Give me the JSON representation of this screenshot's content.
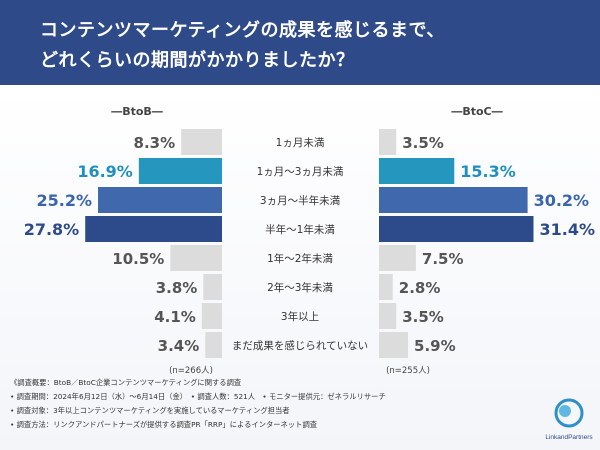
{
  "header": {
    "title_line1": "コンテンツマーケティングの成果を感じるまで、",
    "title_line2": "どれくらいの期間がかかりましたか？"
  },
  "chart_data": {
    "type": "bar",
    "categories": [
      "1ヵ月未満",
      "1ヵ月〜3ヵ月未満",
      "3ヵ月〜半年未満",
      "半年〜1年未満",
      "1年〜2年未満",
      "2年〜3年未満",
      "3年以上",
      "まだ成果を感じられていない"
    ],
    "series": [
      {
        "name": "BtoB",
        "values": [
          8.3,
          16.9,
          25.2,
          27.8,
          10.5,
          3.8,
          4.1,
          3.4
        ],
        "value_labels": [
          "8.3%",
          "16.9%",
          "25.2%",
          "27.8%",
          "10.5%",
          "3.8%",
          "4.1%",
          "3.4%"
        ],
        "n_label": "(n=266人)"
      },
      {
        "name": "BtoC",
        "values": [
          3.5,
          15.3,
          30.2,
          31.4,
          7.5,
          2.8,
          3.5,
          5.9
        ],
        "value_labels": [
          "3.5%",
          "15.3%",
          "30.2%",
          "31.4%",
          "7.5%",
          "2.8%",
          "3.5%",
          "5.9%"
        ],
        "n_label": "(n=255人)"
      }
    ],
    "panel_labels": [
      "―BtoB―",
      "―BtoC―"
    ],
    "highlight_colors": [
      "#2596be",
      "#3f68ad",
      "#2d4a8a"
    ],
    "highlight_text_colors": [
      "#1f8fc0",
      "#3a65ad",
      "#2d4a8a"
    ],
    "default_bar_color": "#dcdcdc",
    "default_text_color": "#555555"
  },
  "footnotes": [
    "《調査概要：BtoB／BtoC企業コンテンツマーケティングに関する調査",
    "• 調査期間：2024年6月12日（水）〜6月14日（金）　• 調査人数：521人　• モニター提供元：ゼネラルリサーチ",
    "• 調査対象：3年以上コンテンツマーケティングを実施しているマーケティング担当者",
    "• 調査方法：リンクアンドパートナーズが提供する調査PR「RRP」によるインターネット調査"
  ],
  "logo": {
    "text": "LinkandPartners",
    "color": "#2f4a88"
  }
}
